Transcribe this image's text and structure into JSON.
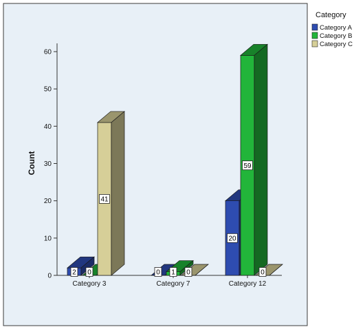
{
  "chart_data": {
    "type": "bar",
    "categories": [
      "Category 3",
      "Category 7",
      "Category 12"
    ],
    "series": [
      {
        "name": "Category A",
        "values": [
          2,
          0,
          20
        ],
        "color": "#2e4cb0"
      },
      {
        "name": "Category B",
        "values": [
          0,
          1,
          59
        ],
        "color": "#22b53a"
      },
      {
        "name": "Category C",
        "values": [
          41,
          0,
          0
        ],
        "color": "#d6cf98"
      }
    ],
    "title": "",
    "xlabel": "",
    "ylabel": "Count",
    "ylim": [
      0,
      60
    ],
    "yticks": [
      0,
      10,
      20,
      30,
      40,
      50,
      60
    ],
    "legend": {
      "title": "Category",
      "placement": "right"
    },
    "grid": false,
    "style": "3d-bars"
  }
}
